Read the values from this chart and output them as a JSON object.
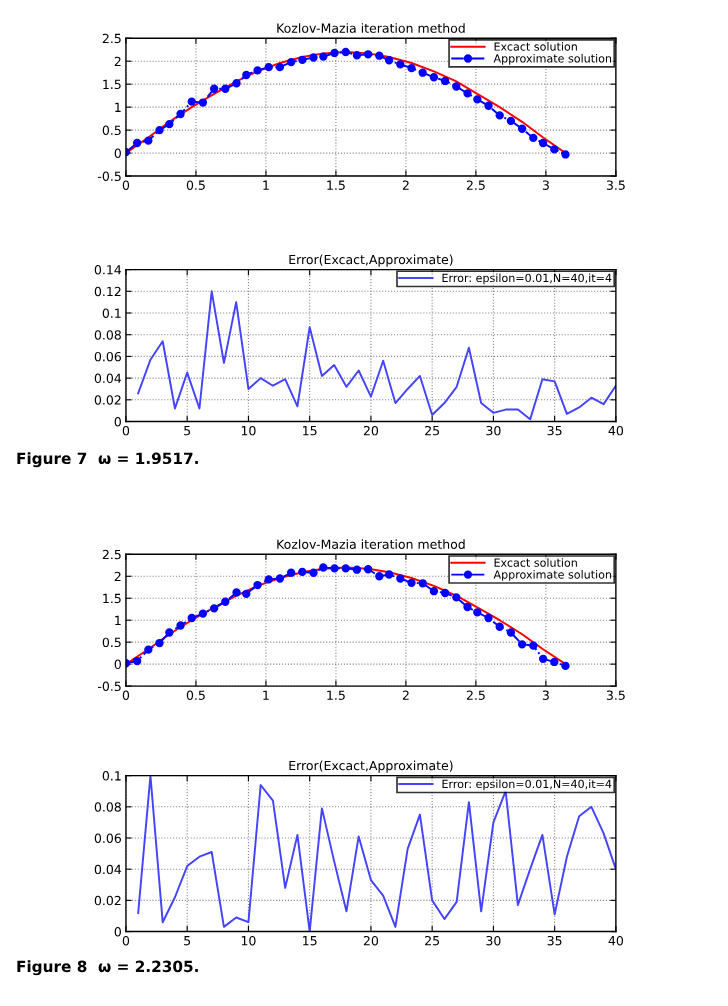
{
  "chart_data": [
    {
      "type": "line",
      "title": "Kozlov-Mazia iteration method",
      "xlim": [
        0,
        3.5
      ],
      "ylim": [
        -0.5,
        2.5
      ],
      "xticks": [
        0,
        0.5,
        1,
        1.5,
        2,
        2.5,
        3,
        3.5
      ],
      "yticks": [
        -0.5,
        0,
        0.5,
        1,
        1.5,
        2,
        2.5
      ],
      "grid": true,
      "legend": "top right",
      "series": [
        {
          "name": "Excact solution",
          "color": "#ff0000",
          "line_style": "solid",
          "marker": "none",
          "x": [
            0,
            0.16,
            0.31,
            0.47,
            0.63,
            0.79,
            0.94,
            1.1,
            1.26,
            1.41,
            1.57,
            1.73,
            1.88,
            2.04,
            2.2,
            2.36,
            2.51,
            2.67,
            2.83,
            2.98,
            3.14
          ],
          "values": [
            0,
            0.34,
            0.68,
            1.0,
            1.29,
            1.56,
            1.78,
            1.96,
            2.09,
            2.17,
            2.2,
            2.17,
            2.09,
            1.96,
            1.78,
            1.56,
            1.29,
            1.0,
            0.68,
            0.34,
            0
          ]
        },
        {
          "name": "Approximate solution",
          "color": "#0000ff",
          "line_style": "dashed",
          "marker": "circle",
          "x": [
            0,
            0.08,
            0.16,
            0.24,
            0.31,
            0.39,
            0.47,
            0.55,
            0.63,
            0.71,
            0.79,
            0.86,
            0.94,
            1.02,
            1.1,
            1.18,
            1.26,
            1.34,
            1.41,
            1.49,
            1.57,
            1.65,
            1.73,
            1.81,
            1.88,
            1.96,
            2.04,
            2.12,
            2.2,
            2.28,
            2.36,
            2.44,
            2.51,
            2.59,
            2.67,
            2.75,
            2.83,
            2.91,
            2.98,
            3.06,
            3.14
          ],
          "values": [
            0.02,
            0.22,
            0.27,
            0.5,
            0.63,
            0.85,
            1.12,
            1.1,
            1.4,
            1.4,
            1.52,
            1.7,
            1.8,
            1.87,
            1.87,
            1.98,
            2.03,
            2.08,
            2.1,
            2.18,
            2.2,
            2.13,
            2.15,
            2.12,
            2.02,
            1.93,
            1.85,
            1.75,
            1.65,
            1.57,
            1.45,
            1.3,
            1.17,
            1.03,
            0.82,
            0.7,
            0.53,
            0.33,
            0.22,
            0.08,
            -0.03
          ]
        }
      ]
    },
    {
      "type": "line",
      "title": "Error(Excact,Approximate)",
      "xlim": [
        0,
        40
      ],
      "ylim": [
        0,
        0.14
      ],
      "xticks": [
        0,
        5,
        10,
        15,
        20,
        25,
        30,
        35,
        40
      ],
      "yticks": [
        0,
        0.02,
        0.04,
        0.06,
        0.08,
        0.1,
        0.12,
        0.14
      ],
      "grid": true,
      "legend": "top right",
      "annotations": [
        "Figure 7  ω = 1.9517."
      ],
      "series": [
        {
          "name": "Error: epsilon=0.01,N=40,it=4",
          "color": "#4444ff",
          "line_style": "solid",
          "marker": "none",
          "x": [
            1,
            2,
            3,
            4,
            5,
            6,
            7,
            8,
            9,
            10,
            11,
            12,
            13,
            14,
            15,
            16,
            17,
            18,
            19,
            20,
            21,
            22,
            23,
            24,
            25,
            26,
            27,
            28,
            29,
            30,
            31,
            32,
            33,
            34,
            35,
            36,
            37,
            38,
            39,
            40
          ],
          "values": [
            0.026,
            0.057,
            0.074,
            0.012,
            0.045,
            0.012,
            0.12,
            0.054,
            0.11,
            0.03,
            0.04,
            0.033,
            0.039,
            0.014,
            0.087,
            0.042,
            0.052,
            0.032,
            0.047,
            0.023,
            0.056,
            0.017,
            0.03,
            0.042,
            0.006,
            0.017,
            0.032,
            0.068,
            0.017,
            0.008,
            0.011,
            0.011,
            0.002,
            0.039,
            0.037,
            0.007,
            0.013,
            0.022,
            0.016,
            0.033
          ]
        }
      ]
    },
    {
      "type": "line",
      "title": "Kozlov-Mazia iteration method",
      "xlim": [
        0,
        3.5
      ],
      "ylim": [
        -0.5,
        2.5
      ],
      "xticks": [
        0,
        0.5,
        1,
        1.5,
        2,
        2.5,
        3,
        3.5
      ],
      "yticks": [
        -0.5,
        0,
        0.5,
        1,
        1.5,
        2,
        2.5
      ],
      "grid": true,
      "legend": "top right",
      "series": [
        {
          "name": "Excact solution",
          "color": "#ff0000",
          "line_style": "solid",
          "marker": "none",
          "x": [
            0,
            0.16,
            0.31,
            0.47,
            0.63,
            0.79,
            0.94,
            1.1,
            1.26,
            1.41,
            1.57,
            1.73,
            1.88,
            2.04,
            2.2,
            2.36,
            2.51,
            2.67,
            2.83,
            2.98,
            3.14
          ],
          "values": [
            0,
            0.34,
            0.68,
            1.0,
            1.29,
            1.56,
            1.78,
            1.96,
            2.09,
            2.17,
            2.2,
            2.17,
            2.09,
            1.96,
            1.78,
            1.56,
            1.29,
            1.0,
            0.68,
            0.34,
            0
          ]
        },
        {
          "name": "Approximate solution",
          "color": "#0000ff",
          "line_style": "dashed",
          "marker": "circle",
          "x": [
            0,
            0.08,
            0.16,
            0.24,
            0.31,
            0.39,
            0.47,
            0.55,
            0.63,
            0.71,
            0.79,
            0.86,
            0.94,
            1.02,
            1.1,
            1.18,
            1.26,
            1.34,
            1.41,
            1.49,
            1.57,
            1.65,
            1.73,
            1.81,
            1.88,
            1.96,
            2.04,
            2.12,
            2.2,
            2.28,
            2.36,
            2.44,
            2.51,
            2.59,
            2.67,
            2.75,
            2.83,
            2.91,
            2.98,
            3.06,
            3.14
          ],
          "values": [
            0.02,
            0.07,
            0.33,
            0.48,
            0.72,
            0.88,
            1.05,
            1.15,
            1.27,
            1.42,
            1.63,
            1.6,
            1.8,
            1.93,
            1.95,
            2.08,
            2.1,
            2.08,
            2.2,
            2.18,
            2.18,
            2.15,
            2.16,
            2.0,
            2.04,
            1.95,
            1.85,
            1.84,
            1.66,
            1.62,
            1.52,
            1.3,
            1.18,
            1.05,
            0.85,
            0.72,
            0.45,
            0.42,
            0.12,
            0.05,
            -0.04
          ]
        }
      ]
    },
    {
      "type": "line",
      "title": "Error(Excact,Approximate)",
      "xlim": [
        0,
        40
      ],
      "ylim": [
        0,
        0.1
      ],
      "xticks": [
        0,
        5,
        10,
        15,
        20,
        25,
        30,
        35,
        40
      ],
      "yticks": [
        0,
        0.02,
        0.04,
        0.06,
        0.08,
        0.1
      ],
      "grid": true,
      "legend": "top right",
      "annotations": [
        "Figure 8  ω = 2.2305."
      ],
      "series": [
        {
          "name": "Error: epsilon=0.01,N=40,it=4",
          "color": "#4444ff",
          "line_style": "solid",
          "marker": "none",
          "x": [
            1,
            2,
            3,
            4,
            5,
            6,
            7,
            8,
            9,
            10,
            11,
            12,
            13,
            14,
            15,
            16,
            17,
            18,
            19,
            20,
            21,
            22,
            23,
            24,
            25,
            26,
            27,
            28,
            29,
            30,
            31,
            32,
            33,
            34,
            35,
            36,
            37,
            38,
            39,
            40
          ],
          "values": [
            0.012,
            0.1,
            0.006,
            0.022,
            0.042,
            0.048,
            0.051,
            0.003,
            0.009,
            0.006,
            0.094,
            0.084,
            0.028,
            0.062,
            0.0,
            0.079,
            0.045,
            0.013,
            0.061,
            0.033,
            0.023,
            0.003,
            0.053,
            0.075,
            0.02,
            0.008,
            0.019,
            0.083,
            0.013,
            0.07,
            0.09,
            0.017,
            0.04,
            0.062,
            0.011,
            0.048,
            0.074,
            0.08,
            0.063,
            0.04
          ]
        }
      ]
    }
  ]
}
